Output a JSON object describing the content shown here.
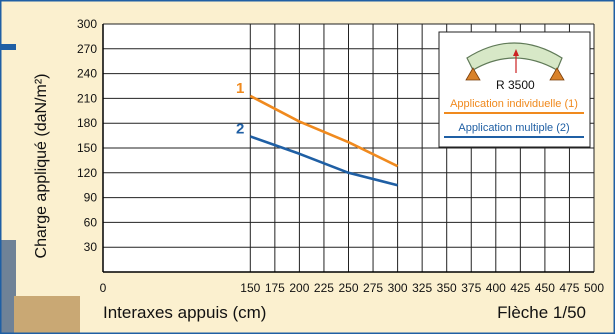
{
  "chart_data": {
    "type": "line",
    "title": "",
    "ylabel": "Charge appliqué  (daN/m²)",
    "xlabel": "Interaxes appuis  (cm)",
    "corner_label": "Flèche 1/50",
    "x_ticks": [
      0,
      150,
      175,
      200,
      225,
      250,
      275,
      300,
      325,
      350,
      375,
      400,
      425,
      450,
      475,
      500
    ],
    "y_ticks": [
      30,
      60,
      90,
      120,
      150,
      180,
      210,
      240,
      270,
      300
    ],
    "xlim": [
      0,
      500
    ],
    "ylim": [
      0,
      300
    ],
    "grid": true,
    "series": [
      {
        "name": "Application individuelle  (1)",
        "marker": "1",
        "color": "#f08a1e",
        "x": [
          150,
          200,
          250,
          300
        ],
        "y": [
          213,
          182,
          157,
          128
        ]
      },
      {
        "name": "Application multiple (2)",
        "marker": "2",
        "color": "#1f5fa4",
        "x": [
          150,
          200,
          250,
          300
        ],
        "y": [
          164,
          143,
          120,
          105
        ]
      }
    ],
    "legend": {
      "placement": "top-right",
      "radius_label": "R 3500",
      "entries": [
        "Application individuelle  (1)",
        "Application multiple (2)"
      ]
    }
  },
  "colors": {
    "background": "#fbf0cf",
    "border": "#1f5fa4",
    "grid": "#222222",
    "series1": "#f08a1e",
    "series2": "#1f5fa4",
    "arc_fill": "#d7e8c7",
    "arc_stroke": "#607a58",
    "support": "#d9822b",
    "arrow": "#cc2222"
  }
}
